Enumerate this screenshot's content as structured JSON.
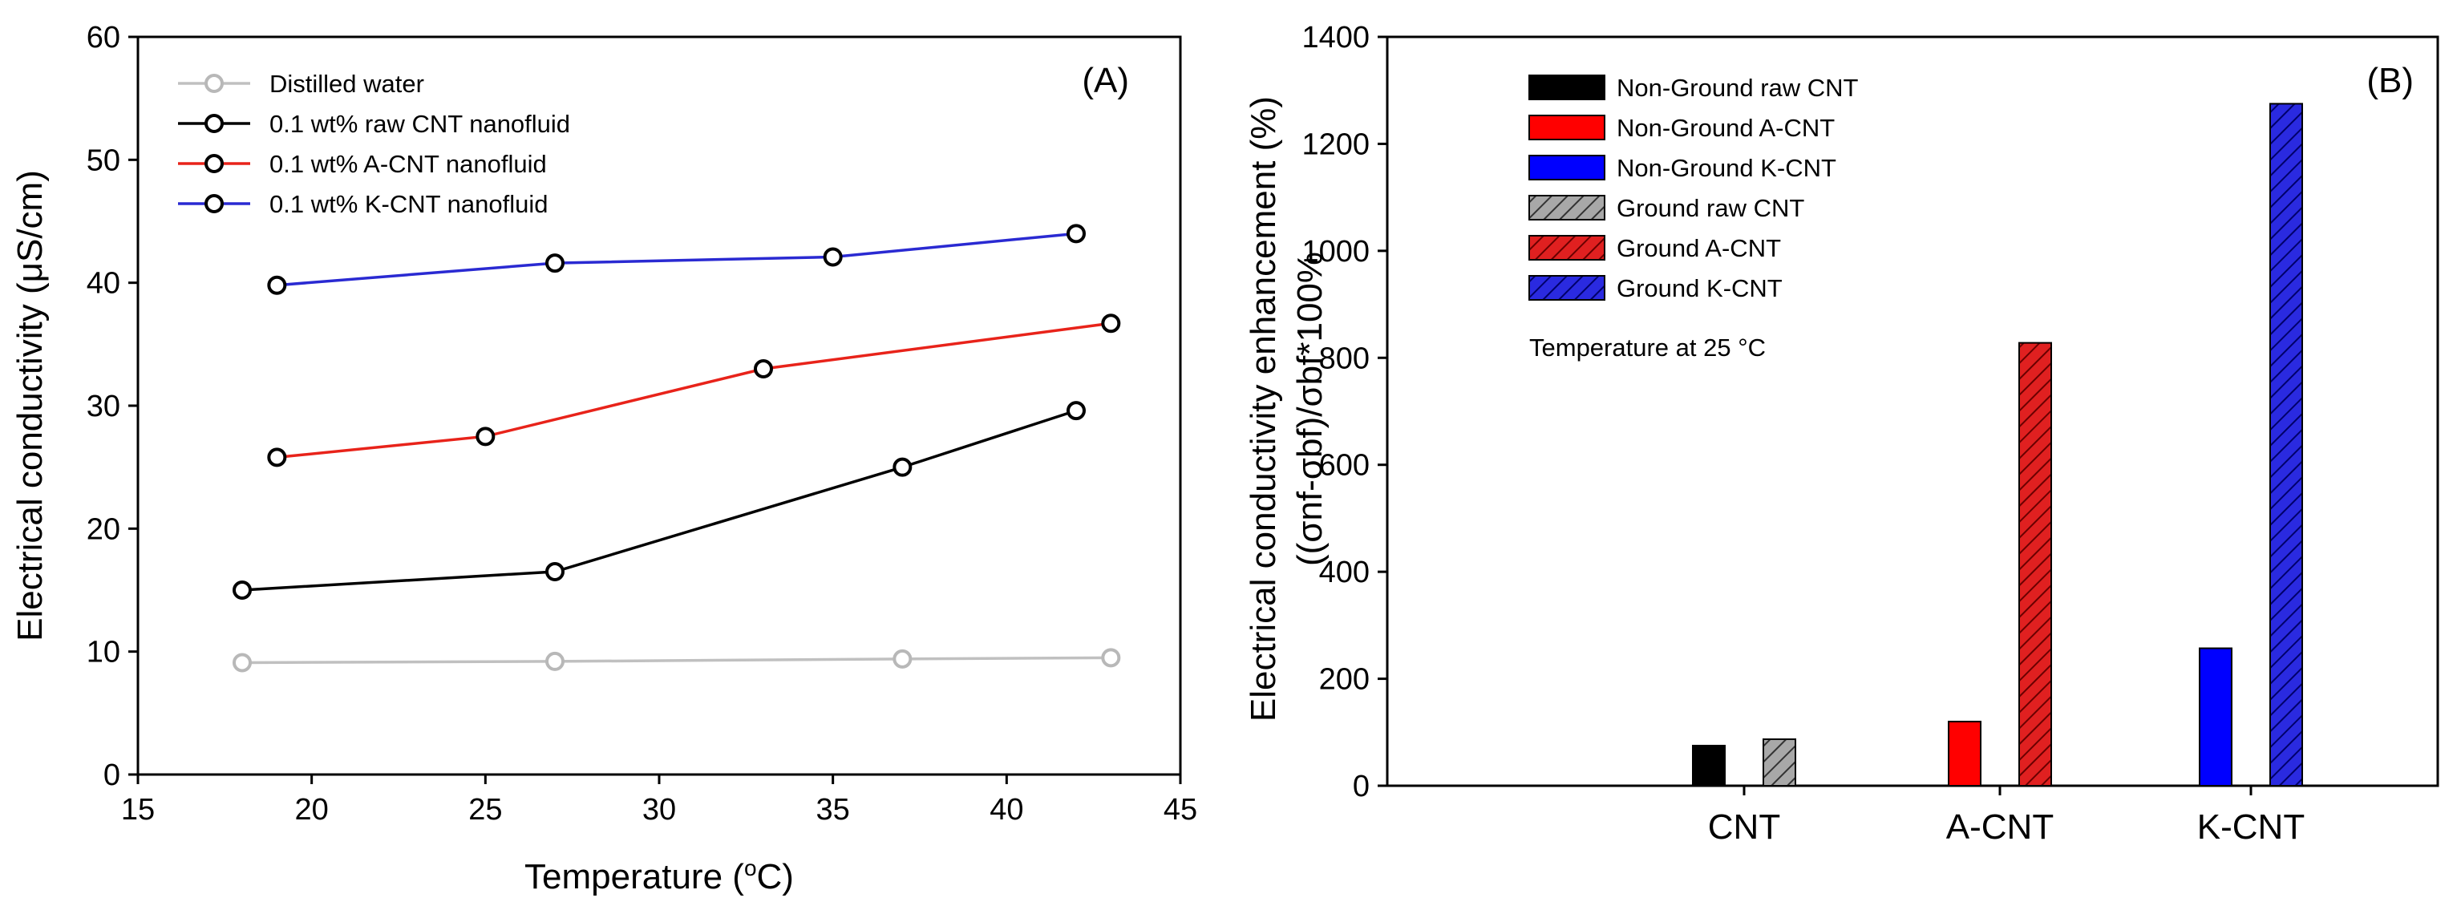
{
  "chart_data": [
    {
      "type": "line",
      "panel_label": "(A)",
      "title": "",
      "xlabel": "Temperature (",
      "xlabel_degree": "o",
      "xlabel_unit": "C)",
      "ylabel": "Electrical conductivity (μS/cm)",
      "xlim": [
        15,
        45
      ],
      "ylim": [
        0,
        60
      ],
      "xticks": [
        "15",
        "20",
        "25",
        "30",
        "35",
        "40",
        "45"
      ],
      "yticks": [
        "0",
        "10",
        "20",
        "30",
        "40",
        "50",
        "60"
      ],
      "legend_position": "top-left",
      "series": [
        {
          "name": "Distilled water",
          "color": "#c0c0c0",
          "x": [
            18,
            27,
            37,
            43
          ],
          "y": [
            9.1,
            9.2,
            9.4,
            9.5
          ]
        },
        {
          "name": "0.1 wt% raw CNT nanofluid",
          "color": "#000000",
          "x": [
            18,
            27,
            37,
            42
          ],
          "y": [
            15.0,
            16.5,
            25.0,
            29.6
          ]
        },
        {
          "name": "0.1 wt% A-CNT nanofluid",
          "color": "#e8231a",
          "x": [
            19,
            25,
            33,
            43
          ],
          "y": [
            25.8,
            27.5,
            33.0,
            36.7
          ]
        },
        {
          "name": "0.1 wt% K-CNT nanofluid",
          "color": "#2a2ad2",
          "x": [
            19,
            27,
            35,
            42
          ],
          "y": [
            39.8,
            41.6,
            42.1,
            44.0
          ]
        }
      ]
    },
    {
      "type": "bar",
      "panel_label": "(B)",
      "title": "",
      "xlabel": "",
      "ylabel": "Electrical conductivity enhancement (%)",
      "ylabel_line2": "((σnf-σbf)/σbf*100%",
      "categories": [
        "CNT",
        "A-CNT",
        "K-CNT"
      ],
      "ylim": [
        0,
        1400
      ],
      "yticks": [
        "0",
        "200",
        "400",
        "600",
        "800",
        "1000",
        "1200",
        "1400"
      ],
      "annotation": "Temperature at 25 °C",
      "legend_position": "top-left",
      "series": [
        {
          "name": "Non-Ground raw CNT",
          "color": "#000000",
          "hatched": false,
          "category": "CNT",
          "value": 75
        },
        {
          "name": "Non-Ground A-CNT",
          "color": "#ff0000",
          "hatched": false,
          "category": "A-CNT",
          "value": 120
        },
        {
          "name": "Non-Ground K-CNT",
          "color": "#0000ff",
          "hatched": false,
          "category": "K-CNT",
          "value": 257
        },
        {
          "name": "Ground raw CNT",
          "color": "#8a8a8a",
          "hatched": true,
          "category": "CNT",
          "value": 87
        },
        {
          "name": "Ground A-CNT",
          "color": "#cc1111",
          "hatched": true,
          "category": "A-CNT",
          "value": 828
        },
        {
          "name": "Ground K-CNT",
          "color": "#1a1ab8",
          "hatched": true,
          "category": "K-CNT",
          "value": 1275
        }
      ]
    }
  ]
}
